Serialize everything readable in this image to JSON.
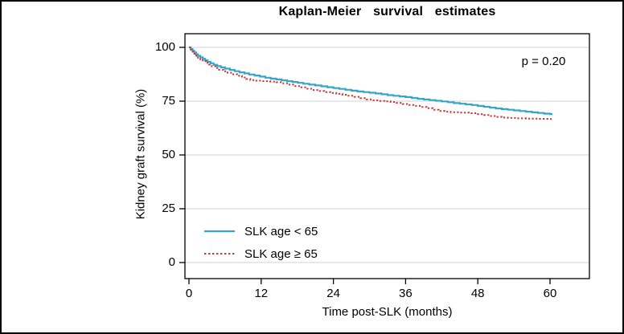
{
  "figure": {
    "title": "Kaplan-Meier survival estimates",
    "annotation": "p = 0.20"
  },
  "chart_data": {
    "type": "line",
    "subtype": "kaplan-meier-step-survival",
    "title": "Kaplan-Meier survival estimates",
    "xlabel": "Time post-SLK (months)",
    "ylabel": "Kidney graft survival (%)",
    "xlim": [
      0,
      60
    ],
    "ylim": [
      0,
      100
    ],
    "xticks": [
      0,
      12,
      24,
      36,
      48,
      60
    ],
    "yticks": [
      0,
      25,
      50,
      75,
      100
    ],
    "grid": "horizontal",
    "gridline_color": "#d2d2d2",
    "axis_color": "#000000",
    "annotation": "p = 0.20",
    "legend_position": "inside-bottom-left",
    "series": [
      {
        "name": "SLK age < 65",
        "color": "#35a5c8",
        "style": "solid",
        "points": [
          [
            0,
            100
          ],
          [
            0.3,
            99.2
          ],
          [
            0.6,
            98.4
          ],
          [
            0.9,
            97.6
          ],
          [
            1.2,
            96.8
          ],
          [
            1.5,
            96.1
          ],
          [
            1.9,
            95.4
          ],
          [
            2.3,
            94.7
          ],
          [
            2.7,
            94.0
          ],
          [
            3.1,
            93.3
          ],
          [
            3.6,
            92.6
          ],
          [
            4.1,
            91.9
          ],
          [
            4.7,
            91.3
          ],
          [
            5.3,
            90.7
          ],
          [
            6.0,
            90.1
          ],
          [
            6.8,
            89.5
          ],
          [
            7.6,
            88.9
          ],
          [
            8.4,
            88.4
          ],
          [
            9.2,
            87.9
          ],
          [
            10.0,
            87.4
          ],
          [
            10.9,
            86.9
          ],
          [
            11.8,
            86.4
          ],
          [
            12.7,
            85.9
          ],
          [
            13.6,
            85.5
          ],
          [
            14.5,
            85.1
          ],
          [
            15.4,
            84.7
          ],
          [
            16.3,
            84.3
          ],
          [
            17.2,
            83.9
          ],
          [
            18.1,
            83.5
          ],
          [
            19.0,
            83.1
          ],
          [
            20,
            82.7
          ],
          [
            21,
            82.3
          ],
          [
            22,
            81.9
          ],
          [
            23,
            81.5
          ],
          [
            24,
            81.1
          ],
          [
            25,
            80.7
          ],
          [
            26,
            80.3
          ],
          [
            27,
            79.9
          ],
          [
            28,
            79.5
          ],
          [
            29,
            79.2
          ],
          [
            30,
            78.9
          ],
          [
            31,
            78.6
          ],
          [
            32,
            78.2
          ],
          [
            33,
            77.8
          ],
          [
            34,
            77.5
          ],
          [
            35,
            77.2
          ],
          [
            36,
            76.9
          ],
          [
            37,
            76.5
          ],
          [
            38,
            76.1
          ],
          [
            39,
            75.8
          ],
          [
            40,
            75.5
          ],
          [
            41,
            75.2
          ],
          [
            42,
            74.9
          ],
          [
            43,
            74.5
          ],
          [
            44,
            74.1
          ],
          [
            45,
            73.8
          ],
          [
            46,
            73.5
          ],
          [
            47,
            73.2
          ],
          [
            48,
            72.8
          ],
          [
            49,
            72.4
          ],
          [
            50,
            72.0
          ],
          [
            51,
            71.6
          ],
          [
            52,
            71.3
          ],
          [
            53,
            71.0
          ],
          [
            54,
            70.7
          ],
          [
            55,
            70.4
          ],
          [
            56,
            70.1
          ],
          [
            57,
            69.8
          ],
          [
            58,
            69.5
          ],
          [
            59,
            69.2
          ],
          [
            60,
            69.0
          ]
        ]
      },
      {
        "name": "SLK age ≥ 65",
        "color": "#c13b3b",
        "style": "dotted",
        "points": [
          [
            0,
            100
          ],
          [
            0.3,
            99.0
          ],
          [
            0.6,
            98.0
          ],
          [
            0.9,
            97.0
          ],
          [
            1.2,
            96.1
          ],
          [
            1.5,
            95.2
          ],
          [
            1.9,
            94.4
          ],
          [
            2.3,
            93.6
          ],
          [
            2.8,
            92.8
          ],
          [
            3.3,
            92.0
          ],
          [
            3.8,
            91.2
          ],
          [
            4.4,
            90.4
          ],
          [
            5.0,
            89.6
          ],
          [
            5.7,
            88.9
          ],
          [
            6.4,
            88.2
          ],
          [
            7.2,
            87.5
          ],
          [
            8.0,
            86.8
          ],
          [
            8.8,
            86.0
          ],
          [
            9.5,
            85.3
          ],
          [
            10.2,
            84.8
          ],
          [
            11.0,
            84.5
          ],
          [
            12.2,
            84.3
          ],
          [
            13.5,
            84.1
          ],
          [
            14.5,
            83.8
          ],
          [
            15.5,
            83.3
          ],
          [
            16.5,
            82.7
          ],
          [
            17.5,
            82.0
          ],
          [
            18.5,
            81.4
          ],
          [
            19.5,
            80.8
          ],
          [
            20.5,
            80.2
          ],
          [
            21.5,
            79.7
          ],
          [
            22.5,
            79.2
          ],
          [
            23.5,
            78.8
          ],
          [
            24.5,
            78.4
          ],
          [
            25.5,
            78.0
          ],
          [
            26.5,
            77.5
          ],
          [
            27.5,
            77.0
          ],
          [
            28.5,
            76.4
          ],
          [
            29.5,
            75.8
          ],
          [
            30.5,
            75.4
          ],
          [
            31.5,
            75.1
          ],
          [
            32.5,
            74.9
          ],
          [
            33.5,
            74.6
          ],
          [
            34.5,
            74.2
          ],
          [
            35.5,
            73.7
          ],
          [
            36.5,
            73.2
          ],
          [
            37.5,
            72.8
          ],
          [
            38.5,
            72.3
          ],
          [
            39.5,
            71.7
          ],
          [
            40.5,
            71.0
          ],
          [
            41.5,
            70.4
          ],
          [
            42.5,
            70.1
          ],
          [
            43.5,
            69.9
          ],
          [
            45,
            69.7
          ],
          [
            46.5,
            69.4
          ],
          [
            48,
            69.0
          ],
          [
            49,
            68.6
          ],
          [
            50,
            68.1
          ],
          [
            51,
            67.7
          ],
          [
            52,
            67.4
          ],
          [
            53,
            67.2
          ],
          [
            54.5,
            67.0
          ],
          [
            56,
            66.9
          ],
          [
            58,
            66.8
          ],
          [
            60,
            66.7
          ]
        ]
      }
    ]
  }
}
